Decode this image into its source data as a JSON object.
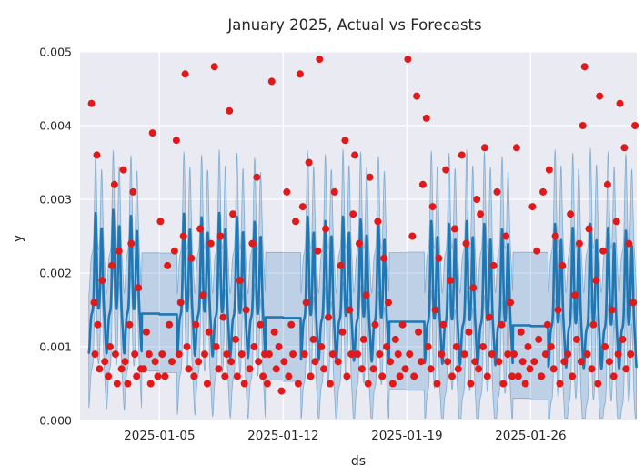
{
  "style": {
    "figure_bg": "#ffffff",
    "axes_bg": "#eaeaf2",
    "grid": "#ffffff",
    "text": "#262626",
    "line": "#1f77b4",
    "band_fill": "rgba(31,119,180,0.22)",
    "band_edge": "rgba(31,119,180,0.45)",
    "scatter": "#e01a1a"
  },
  "chart_data": {
    "type": "line+scatter+area",
    "title": "January 2025, Actual vs Forecasts",
    "xlabel": "ds",
    "ylabel": "y",
    "start_date": "2025-01-01",
    "xlim_days": [
      -0.5,
      31
    ],
    "ylim": [
      0,
      0.005
    ],
    "grid": true,
    "legend": "none",
    "y_ticks": [
      {
        "value": 0,
        "label": "0.000"
      },
      {
        "value": 0.001,
        "label": "0.001"
      },
      {
        "value": 0.002,
        "label": "0.002"
      },
      {
        "value": 0.003,
        "label": "0.003"
      },
      {
        "value": 0.004,
        "label": "0.004"
      },
      {
        "value": 0.005,
        "label": "0.005"
      }
    ],
    "x_ticks": [
      {
        "day": 4,
        "label": "2025-01-05"
      },
      {
        "day": 11,
        "label": "2025-01-12"
      },
      {
        "day": 18,
        "label": "2025-01-19"
      },
      {
        "day": 25,
        "label": "2025-01-26"
      }
    ],
    "forecast": {
      "name": "forecast (yhat) with daily seasonality, flat on weekends",
      "daily_profile": {
        "peaks": [
          {
            "time": 0.38,
            "rel_amp": 1.0
          },
          {
            "time": 0.72,
            "rel_amp": 0.85
          }
        ],
        "width": 0.085,
        "night_dip": 0.00055,
        "night_width": 0.09
      },
      "band_offsets": {
        "lower_start": 0.00075,
        "lower_end": 0.00105,
        "upper_start": 0.0008,
        "upper_end": 0.00104
      },
      "days": [
        {
          "date": "2025-01-01",
          "base": 0.00147,
          "amp": 0.00135
        },
        {
          "date": "2025-01-02",
          "base": 0.00146,
          "amp": 0.0014
        },
        {
          "date": "2025-01-03",
          "base": 0.00146,
          "amp": 0.00132
        },
        {
          "date": "2025-01-04",
          "base": 0.00145,
          "amp": 0
        },
        {
          "date": "2025-01-05",
          "base": 0.00144,
          "amp": 0
        },
        {
          "date": "2025-01-06",
          "base": 0.00143,
          "amp": 0.00138
        },
        {
          "date": "2025-01-07",
          "base": 0.00143,
          "amp": 0.00133
        },
        {
          "date": "2025-01-08",
          "base": 0.00142,
          "amp": 0.0014
        },
        {
          "date": "2025-01-09",
          "base": 0.00141,
          "amp": 0.00136
        },
        {
          "date": "2025-01-10",
          "base": 0.0014,
          "amp": 0.0013
        },
        {
          "date": "2025-01-11",
          "base": 0.0014,
          "amp": 0
        },
        {
          "date": "2025-01-12",
          "base": 0.00139,
          "amp": 0
        },
        {
          "date": "2025-01-13",
          "base": 0.00138,
          "amp": 0.00139
        },
        {
          "date": "2025-01-14",
          "base": 0.00137,
          "amp": 0.00134
        },
        {
          "date": "2025-01-15",
          "base": 0.00137,
          "amp": 0.0014
        },
        {
          "date": "2025-01-16",
          "base": 0.00136,
          "amp": 0.00137
        },
        {
          "date": "2025-01-17",
          "base": 0.00135,
          "amp": 0.00131
        },
        {
          "date": "2025-01-18",
          "base": 0.00134,
          "amp": 0
        },
        {
          "date": "2025-01-19",
          "base": 0.00134,
          "amp": 0
        },
        {
          "date": "2025-01-20",
          "base": 0.00133,
          "amp": 0.00138
        },
        {
          "date": "2025-01-21",
          "base": 0.00132,
          "amp": 0.00135
        },
        {
          "date": "2025-01-22",
          "base": 0.00131,
          "amp": 0.0014
        },
        {
          "date": "2025-01-23",
          "base": 0.00131,
          "amp": 0.00136
        },
        {
          "date": "2025-01-24",
          "base": 0.0013,
          "amp": 0.0013
        },
        {
          "date": "2025-01-25",
          "base": 0.00129,
          "amp": 0
        },
        {
          "date": "2025-01-26",
          "base": 0.00128,
          "amp": 0
        },
        {
          "date": "2025-01-27",
          "base": 0.00128,
          "amp": 0.00139
        },
        {
          "date": "2025-01-28",
          "base": 0.00127,
          "amp": 0.00135
        },
        {
          "date": "2025-01-29",
          "base": 0.00126,
          "amp": 0.00141
        },
        {
          "date": "2025-01-30",
          "base": 0.00125,
          "amp": 0.00137
        },
        {
          "date": "2025-01-31",
          "base": 0.00125,
          "amp": 0.00133
        }
      ]
    },
    "actual": {
      "name": "actual observations",
      "points": [
        [
          0.15,
          0.0043
        ],
        [
          0.3,
          0.0016
        ],
        [
          0.35,
          0.0009
        ],
        [
          0.45,
          0.0036
        ],
        [
          0.5,
          0.0013
        ],
        [
          0.6,
          0.0007
        ],
        [
          0.75,
          0.0019
        ],
        [
          0.9,
          0.0008
        ],
        [
          1.1,
          0.0006
        ],
        [
          1.2,
          0.001
        ],
        [
          1.3,
          0.0021
        ],
        [
          1.45,
          0.0032
        ],
        [
          1.5,
          0.0009
        ],
        [
          1.6,
          0.0005
        ],
        [
          1.7,
          0.0023
        ],
        [
          1.85,
          0.0007
        ],
        [
          1.95,
          0.0034
        ],
        [
          2.05,
          0.0008
        ],
        [
          2.2,
          0.0005
        ],
        [
          2.3,
          0.0013
        ],
        [
          2.4,
          0.0024
        ],
        [
          2.5,
          0.0031
        ],
        [
          2.6,
          0.0009
        ],
        [
          2.7,
          0.0006
        ],
        [
          2.8,
          0.0018
        ],
        [
          2.95,
          0.0007
        ],
        [
          3.1,
          0.0007
        ],
        [
          3.25,
          0.0012
        ],
        [
          3.4,
          0.0009
        ],
        [
          3.5,
          0.0005
        ],
        [
          3.6,
          0.0039
        ],
        [
          3.75,
          0.0008
        ],
        [
          3.9,
          0.0006
        ],
        [
          4.05,
          0.0027
        ],
        [
          4.15,
          0.0009
        ],
        [
          4.3,
          0.0006
        ],
        [
          4.45,
          0.0021
        ],
        [
          4.55,
          0.0013
        ],
        [
          4.7,
          0.0008
        ],
        [
          4.85,
          0.0023
        ],
        [
          4.95,
          0.0038
        ],
        [
          5.1,
          0.0009
        ],
        [
          5.2,
          0.0016
        ],
        [
          5.35,
          0.0025
        ],
        [
          5.45,
          0.0047
        ],
        [
          5.55,
          0.001
        ],
        [
          5.65,
          0.0007
        ],
        [
          5.8,
          0.0022
        ],
        [
          5.95,
          0.0006
        ],
        [
          6.05,
          0.0013
        ],
        [
          6.2,
          0.0008
        ],
        [
          6.3,
          0.0026
        ],
        [
          6.45,
          0.0017
        ],
        [
          6.55,
          0.0009
        ],
        [
          6.7,
          0.0005
        ],
        [
          6.8,
          0.0012
        ],
        [
          6.9,
          0.0024
        ],
        [
          7.1,
          0.0048
        ],
        [
          7.2,
          0.001
        ],
        [
          7.35,
          0.0007
        ],
        [
          7.45,
          0.0025
        ],
        [
          7.6,
          0.0014
        ],
        [
          7.7,
          0.0006
        ],
        [
          7.8,
          0.0009
        ],
        [
          7.95,
          0.0042
        ],
        [
          8.05,
          0.0008
        ],
        [
          8.15,
          0.0028
        ],
        [
          8.3,
          0.0011
        ],
        [
          8.4,
          0.0006
        ],
        [
          8.55,
          0.0019
        ],
        [
          8.65,
          0.0009
        ],
        [
          8.8,
          0.0005
        ],
        [
          8.9,
          0.0015
        ],
        [
          9.1,
          0.0007
        ],
        [
          9.25,
          0.0024
        ],
        [
          9.35,
          0.001
        ],
        [
          9.5,
          0.0033
        ],
        [
          9.6,
          0.0008
        ],
        [
          9.7,
          0.0013
        ],
        [
          9.85,
          0.0006
        ],
        [
          9.95,
          0.0009
        ],
        [
          10.1,
          0.0005
        ],
        [
          10.2,
          0.0009
        ],
        [
          10.35,
          0.0046
        ],
        [
          10.5,
          0.0012
        ],
        [
          10.6,
          0.0007
        ],
        [
          10.75,
          0.001
        ],
        [
          10.9,
          0.0004
        ],
        [
          11.05,
          0.0008
        ],
        [
          11.2,
          0.0031
        ],
        [
          11.3,
          0.0006
        ],
        [
          11.45,
          0.0013
        ],
        [
          11.55,
          0.0009
        ],
        [
          11.7,
          0.0027
        ],
        [
          11.85,
          0.0005
        ],
        [
          11.95,
          0.0047
        ],
        [
          12.1,
          0.0029
        ],
        [
          12.2,
          0.0009
        ],
        [
          12.3,
          0.0016
        ],
        [
          12.45,
          0.0035
        ],
        [
          12.55,
          0.0006
        ],
        [
          12.7,
          0.0011
        ],
        [
          12.8,
          0.0008
        ],
        [
          12.95,
          0.0023
        ],
        [
          13.05,
          0.0049
        ],
        [
          13.15,
          0.001
        ],
        [
          13.3,
          0.0007
        ],
        [
          13.4,
          0.0026
        ],
        [
          13.55,
          0.0014
        ],
        [
          13.65,
          0.0005
        ],
        [
          13.8,
          0.0009
        ],
        [
          13.9,
          0.0031
        ],
        [
          14.1,
          0.0008
        ],
        [
          14.25,
          0.0021
        ],
        [
          14.35,
          0.0012
        ],
        [
          14.5,
          0.0038
        ],
        [
          14.6,
          0.0006
        ],
        [
          14.75,
          0.0015
        ],
        [
          14.85,
          0.0009
        ],
        [
          14.95,
          0.0028
        ],
        [
          15.05,
          0.0036
        ],
        [
          15.2,
          0.0009
        ],
        [
          15.3,
          0.0024
        ],
        [
          15.45,
          0.0007
        ],
        [
          15.55,
          0.0011
        ],
        [
          15.7,
          0.0017
        ],
        [
          15.8,
          0.0005
        ],
        [
          15.9,
          0.0033
        ],
        [
          16.1,
          0.0007
        ],
        [
          16.2,
          0.0013
        ],
        [
          16.35,
          0.0027
        ],
        [
          16.45,
          0.0009
        ],
        [
          16.6,
          0.0006
        ],
        [
          16.7,
          0.0022
        ],
        [
          16.85,
          0.001
        ],
        [
          16.95,
          0.0016
        ],
        [
          17.05,
          0.0008
        ],
        [
          17.2,
          0.0005
        ],
        [
          17.35,
          0.0011
        ],
        [
          17.5,
          0.0009
        ],
        [
          17.6,
          0.0006
        ],
        [
          17.75,
          0.0013
        ],
        [
          17.9,
          0.0007
        ],
        [
          18.05,
          0.0049
        ],
        [
          18.15,
          0.0009
        ],
        [
          18.3,
          0.0025
        ],
        [
          18.4,
          0.0006
        ],
        [
          18.55,
          0.0044
        ],
        [
          18.65,
          0.0012
        ],
        [
          18.8,
          0.0008
        ],
        [
          18.9,
          0.0032
        ],
        [
          19.1,
          0.0041
        ],
        [
          19.2,
          0.001
        ],
        [
          19.35,
          0.0007
        ],
        [
          19.45,
          0.0029
        ],
        [
          19.6,
          0.0015
        ],
        [
          19.7,
          0.0005
        ],
        [
          19.8,
          0.0022
        ],
        [
          19.95,
          0.0009
        ],
        [
          20.05,
          0.0013
        ],
        [
          20.2,
          0.0034
        ],
        [
          20.3,
          0.0008
        ],
        [
          20.45,
          0.0019
        ],
        [
          20.55,
          0.0006
        ],
        [
          20.7,
          0.0026
        ],
        [
          20.8,
          0.001
        ],
        [
          20.9,
          0.0007
        ],
        [
          21.1,
          0.0036
        ],
        [
          21.25,
          0.0009
        ],
        [
          21.35,
          0.0024
        ],
        [
          21.5,
          0.0012
        ],
        [
          21.6,
          0.0005
        ],
        [
          21.75,
          0.0018
        ],
        [
          21.85,
          0.0008
        ],
        [
          21.95,
          0.003
        ],
        [
          22.05,
          0.0007
        ],
        [
          22.15,
          0.0028
        ],
        [
          22.3,
          0.001
        ],
        [
          22.4,
          0.0037
        ],
        [
          22.55,
          0.0006
        ],
        [
          22.65,
          0.0014
        ],
        [
          22.8,
          0.0009
        ],
        [
          22.9,
          0.0021
        ],
        [
          23.1,
          0.0031
        ],
        [
          23.2,
          0.0008
        ],
        [
          23.35,
          0.0013
        ],
        [
          23.45,
          0.0005
        ],
        [
          23.6,
          0.0025
        ],
        [
          23.7,
          0.0009
        ],
        [
          23.85,
          0.0016
        ],
        [
          23.95,
          0.0006
        ],
        [
          24.05,
          0.0009
        ],
        [
          24.2,
          0.0037
        ],
        [
          24.3,
          0.0006
        ],
        [
          24.45,
          0.0012
        ],
        [
          24.55,
          0.0008
        ],
        [
          24.7,
          0.0005
        ],
        [
          24.85,
          0.001
        ],
        [
          24.95,
          0.0007
        ],
        [
          25.1,
          0.0029
        ],
        [
          25.2,
          0.0008
        ],
        [
          25.35,
          0.0023
        ],
        [
          25.45,
          0.0011
        ],
        [
          25.6,
          0.0006
        ],
        [
          25.7,
          0.0031
        ],
        [
          25.85,
          0.0009
        ],
        [
          25.95,
          0.0013
        ],
        [
          26.05,
          0.0034
        ],
        [
          26.15,
          0.001
        ],
        [
          26.3,
          0.0007
        ],
        [
          26.4,
          0.0025
        ],
        [
          26.55,
          0.0015
        ],
        [
          26.65,
          0.0005
        ],
        [
          26.8,
          0.0021
        ],
        [
          26.9,
          0.0008
        ],
        [
          27.1,
          0.0009
        ],
        [
          27.25,
          0.0028
        ],
        [
          27.35,
          0.0006
        ],
        [
          27.5,
          0.0017
        ],
        [
          27.6,
          0.0011
        ],
        [
          27.75,
          0.0024
        ],
        [
          27.85,
          0.0008
        ],
        [
          27.95,
          0.004
        ],
        [
          28.05,
          0.0048
        ],
        [
          28.2,
          0.0009
        ],
        [
          28.3,
          0.0026
        ],
        [
          28.45,
          0.0007
        ],
        [
          28.55,
          0.0013
        ],
        [
          28.7,
          0.0019
        ],
        [
          28.8,
          0.0005
        ],
        [
          28.9,
          0.0044
        ],
        [
          29.1,
          0.0023
        ],
        [
          29.2,
          0.001
        ],
        [
          29.35,
          0.0032
        ],
        [
          29.45,
          0.0008
        ],
        [
          29.6,
          0.0015
        ],
        [
          29.7,
          0.0006
        ],
        [
          29.85,
          0.0027
        ],
        [
          29.95,
          0.0009
        ],
        [
          30.05,
          0.0043
        ],
        [
          30.2,
          0.0011
        ],
        [
          30.3,
          0.0037
        ],
        [
          30.4,
          0.0007
        ],
        [
          30.55,
          0.0024
        ],
        [
          30.65,
          0.0009
        ],
        [
          30.8,
          0.0016
        ],
        [
          30.9,
          0.004
        ]
      ]
    }
  }
}
